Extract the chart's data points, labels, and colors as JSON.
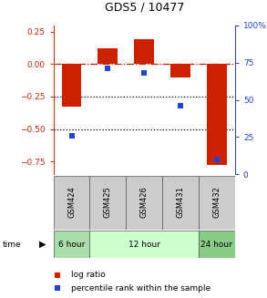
{
  "title": "GDS5 / 10477",
  "samples": [
    "GSM424",
    "GSM425",
    "GSM426",
    "GSM431",
    "GSM432"
  ],
  "log_ratio": [
    -0.33,
    0.12,
    0.19,
    -0.1,
    -0.78
  ],
  "percentile_rank": [
    26,
    71,
    68,
    46,
    10
  ],
  "ylim_left": [
    -0.85,
    0.3
  ],
  "ylim_right": [
    0,
    100
  ],
  "left_ticks": [
    0.25,
    0.0,
    -0.25,
    -0.5,
    -0.75
  ],
  "right_ticks": [
    100,
    75,
    50,
    25,
    0
  ],
  "bar_color": "#cc2200",
  "dot_color": "#2244cc",
  "dotted_lines": [
    -0.25,
    -0.5
  ],
  "bar_width": 0.55,
  "time_groups": [
    {
      "label": "6 hour",
      "start": 0,
      "end": 1,
      "color": "#aaddaa"
    },
    {
      "label": "12 hour",
      "start": 1,
      "end": 4,
      "color": "#ccffcc"
    },
    {
      "label": "24 hour",
      "start": 4,
      "end": 5,
      "color": "#88cc88"
    }
  ]
}
